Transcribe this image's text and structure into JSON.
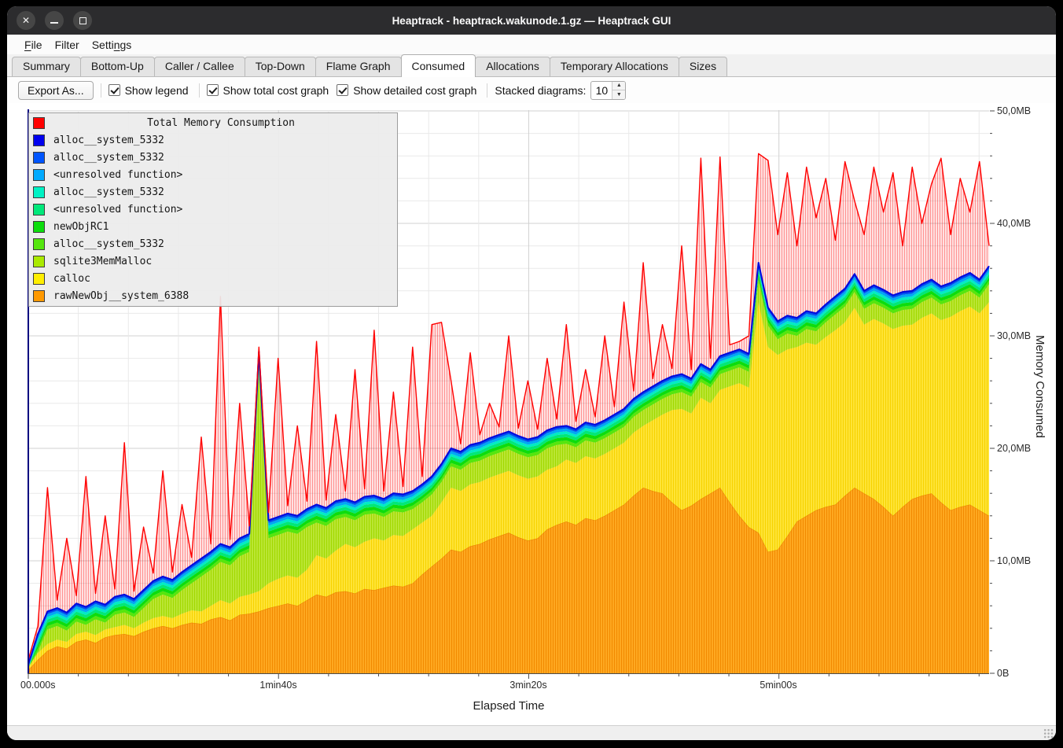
{
  "window": {
    "title": "Heaptrack - heaptrack.wakunode.1.gz — Heaptrack GUI"
  },
  "menu": {
    "items": [
      {
        "name": "file",
        "pre": "",
        "accel": "F",
        "post": "ile"
      },
      {
        "name": "filter",
        "pre": "Filter",
        "accel": "",
        "post": ""
      },
      {
        "name": "settings",
        "pre": "Setti",
        "accel": "n",
        "post": "gs"
      }
    ]
  },
  "tabs": {
    "active": "Consumed",
    "items": [
      "Summary",
      "Bottom-Up",
      "Caller / Callee",
      "Top-Down",
      "Flame Graph",
      "Consumed",
      "Allocations",
      "Temporary Allocations",
      "Sizes"
    ]
  },
  "toolbar": {
    "export_label": "Export As...",
    "checkboxes": [
      {
        "label": "Show legend",
        "checked": true
      },
      {
        "label": "Show total cost graph",
        "checked": true
      },
      {
        "label": "Show detailed cost graph",
        "checked": true
      }
    ],
    "stacked_label": "Stacked diagrams:",
    "stacked_value": "10"
  },
  "legend": {
    "items": [
      {
        "label": "Total Memory Consumption",
        "color": "#ff0000",
        "title_row": true
      },
      {
        "label": "alloc__system_5332",
        "color": "#0000ee"
      },
      {
        "label": "alloc__system_5332",
        "color": "#0055ff"
      },
      {
        "label": "<unresolved function>",
        "color": "#00aaff"
      },
      {
        "label": "alloc__system_5332",
        "color": "#00f2c4"
      },
      {
        "label": "<unresolved function>",
        "color": "#00e87a"
      },
      {
        "label": "newObjRC1",
        "color": "#0ddd0d"
      },
      {
        "label": "alloc__system_5332",
        "color": "#55e60e"
      },
      {
        "label": "sqlite3MemMalloc",
        "color": "#aaea00"
      },
      {
        "label": "calloc",
        "color": "#ffee00"
      },
      {
        "label": "rawNewObj__system_6388",
        "color": "#ff9900"
      }
    ]
  },
  "statusbar": {
    "text": ""
  },
  "chart_data": {
    "type": "area",
    "title": "Total Memory Consumption",
    "xlabel": "Elapsed Time",
    "ylabel": "Memory Consumed",
    "unit": "MB",
    "ylim": [
      0,
      50
    ],
    "xlim_seconds": [
      0,
      384
    ],
    "x_tick_labels": [
      "00.000s",
      "1min40s",
      "3min20s",
      "5min00s"
    ],
    "x_tick_seconds": [
      0,
      100,
      200,
      300
    ],
    "y_tick_labels": [
      "0B",
      "10,0MB",
      "20,0MB",
      "30,0MB",
      "40,0MB",
      "50,0MB"
    ],
    "grid": {
      "x_minor_seconds": 20,
      "y_minor_mb": 2,
      "shown": true
    },
    "legend_position": "top-left",
    "n_points": 101,
    "x_sampling": "uniform fractions 0..1 of the 384s timeline",
    "total_mb": [
      1.2,
      4.2,
      16.5,
      6.5,
      12.0,
      6.9,
      17.5,
      7.1,
      14.0,
      7.5,
      20.5,
      7.3,
      13.0,
      8.9,
      18.0,
      9.0,
      15.0,
      10.3,
      21.0,
      11.5,
      33.5,
      11.9,
      24.0,
      13.1,
      29.0,
      14.3,
      28.0,
      14.9,
      22.0,
      15.3,
      29.5,
      15.4,
      23.0,
      16.2,
      27.0,
      16.4,
      30.5,
      16.2,
      25.0,
      16.6,
      29.0,
      17.5,
      31.0,
      31.2,
      26.0,
      20.4,
      28.5,
      21.2,
      24.0,
      21.9,
      30.0,
      21.8,
      26.0,
      21.7,
      28.0,
      22.6,
      31.0,
      22.4,
      27.0,
      22.8,
      30.0,
      23.7,
      33.0,
      25.1,
      36.5,
      26.2,
      31.0,
      27.1,
      38.0,
      27.0,
      45.8,
      28.0,
      45.9,
      29.2,
      29.5,
      30.0,
      46.2,
      45.6,
      39.0,
      44.5,
      38.0,
      45.0,
      40.5,
      44.0,
      38.5,
      45.5,
      42.0,
      39.0,
      45.0,
      41.0,
      44.5,
      38.0,
      45.0,
      40.0,
      43.5,
      45.8,
      39.0,
      44.0,
      41.0,
      45.5,
      38.0
    ],
    "detail_top_mb": [
      0.8,
      3.5,
      5.5,
      5.8,
      5.4,
      6.2,
      5.9,
      6.4,
      6.1,
      6.8,
      7.0,
      6.6,
      7.4,
      8.2,
      8.6,
      8.3,
      9.0,
      9.6,
      10.2,
      10.8,
      11.5,
      11.2,
      12.0,
      12.4,
      28.6,
      13.6,
      13.9,
      14.2,
      14.0,
      14.6,
      15.0,
      14.7,
      15.3,
      15.5,
      15.2,
      15.7,
      15.8,
      15.5,
      16.0,
      15.9,
      16.2,
      16.8,
      17.5,
      18.6,
      20.0,
      19.7,
      20.3,
      20.5,
      20.9,
      21.2,
      21.5,
      21.1,
      20.8,
      21.0,
      21.6,
      21.9,
      22.0,
      21.7,
      22.3,
      22.1,
      22.5,
      23.0,
      23.5,
      24.4,
      25.0,
      25.5,
      26.0,
      26.4,
      26.6,
      26.2,
      27.5,
      27.0,
      28.2,
      28.5,
      28.8,
      28.4,
      36.5,
      32.5,
      31.3,
      31.8,
      31.6,
      32.2,
      32.0,
      32.8,
      33.5,
      34.2,
      35.5,
      34.0,
      34.5,
      34.1,
      33.6,
      33.9,
      34.0,
      34.6,
      35.0,
      34.4,
      34.7,
      35.2,
      35.6,
      35.0,
      36.2
    ],
    "calloc_top_mb": [
      0.5,
      1.8,
      2.6,
      3.0,
      2.8,
      3.5,
      3.7,
      3.4,
      3.9,
      4.1,
      4.3,
      4.0,
      4.5,
      4.9,
      5.1,
      4.9,
      5.3,
      5.6,
      5.5,
      6.0,
      6.5,
      6.2,
      6.8,
      7.0,
      7.3,
      8.0,
      8.4,
      8.7,
      8.5,
      9.2,
      10.5,
      10.2,
      10.9,
      11.5,
      11.2,
      11.7,
      12.0,
      11.8,
      12.3,
      12.2,
      12.8,
      13.4,
      14.0,
      15.2,
      16.5,
      16.2,
      16.8,
      17.0,
      17.4,
      17.7,
      18.0,
      17.6,
      17.3,
      17.5,
      18.1,
      18.4,
      19.0,
      18.7,
      19.3,
      19.1,
      19.5,
      20.0,
      20.5,
      21.4,
      22.0,
      22.5,
      23.0,
      23.4,
      23.5,
      23.1,
      24.5,
      24.0,
      25.2,
      25.5,
      25.8,
      25.4,
      33.0,
      29.0,
      28.3,
      28.8,
      29.0,
      29.4,
      29.2,
      29.9,
      30.5,
      31.2,
      32.5,
      31.0,
      31.5,
      31.1,
      30.6,
      30.9,
      31.0,
      31.6,
      32.0,
      31.4,
      31.7,
      32.2,
      32.6,
      32.0,
      33.0
    ],
    "rawnewobj_top_mb": [
      0.3,
      1.2,
      2.0,
      2.4,
      2.2,
      2.8,
      3.0,
      2.7,
      3.2,
      3.4,
      3.5,
      3.3,
      3.7,
      4.0,
      4.2,
      4.0,
      4.3,
      4.5,
      4.4,
      4.8,
      5.0,
      4.7,
      5.2,
      5.3,
      5.5,
      5.8,
      6.0,
      6.2,
      6.0,
      6.5,
      7.0,
      6.8,
      7.2,
      7.3,
      7.1,
      7.5,
      7.4,
      7.6,
      7.8,
      7.7,
      8.0,
      8.8,
      9.5,
      10.2,
      11.0,
      10.8,
      11.3,
      11.5,
      11.9,
      12.2,
      12.5,
      12.1,
      11.8,
      12.0,
      12.8,
      13.2,
      13.5,
      13.2,
      13.8,
      13.6,
      14.0,
      14.5,
      15.0,
      15.8,
      16.5,
      16.2,
      16.0,
      15.2,
      14.5,
      14.9,
      15.5,
      16.0,
      16.5,
      15.2,
      14.0,
      13.0,
      12.5,
      10.8,
      11.0,
      12.2,
      13.5,
      14.0,
      14.5,
      14.8,
      15.0,
      15.8,
      16.5,
      16.0,
      15.5,
      14.8,
      14.0,
      14.8,
      15.5,
      15.8,
      16.0,
      15.2,
      14.5,
      14.8,
      15.0,
      14.5,
      14.0
    ],
    "detail_bands_below_top": [
      {
        "name": "alloc__system_5332",
        "color": "#0050f0",
        "thickness_mb": 0.24
      },
      {
        "name": "<unresolved function>",
        "color": "#00a8f4",
        "thickness_mb": 0.24
      },
      {
        "name": "alloc__system_5332",
        "color": "#00ecc6",
        "thickness_mb": 0.24
      },
      {
        "name": "<unresolved function>",
        "color": "#00e878",
        "thickness_mb": 0.28
      },
      {
        "name": "newObjRC1",
        "color": "#0ddd0d",
        "thickness_mb": 0.3
      },
      {
        "name": "alloc__system_5332",
        "color": "#55e60e",
        "thickness_mb": 0.3
      }
    ],
    "colors": {
      "total_line": "#ff0000",
      "detail_top_line": "#0008dd",
      "sqlite3MemMalloc_area": "#aaea00",
      "calloc_area": "#ffee00",
      "rawNewObj_area": "#ff9900",
      "axis_line": "#000080",
      "grid_minor": "#e9e9e9",
      "grid_major": "#d2d2d2"
    }
  }
}
